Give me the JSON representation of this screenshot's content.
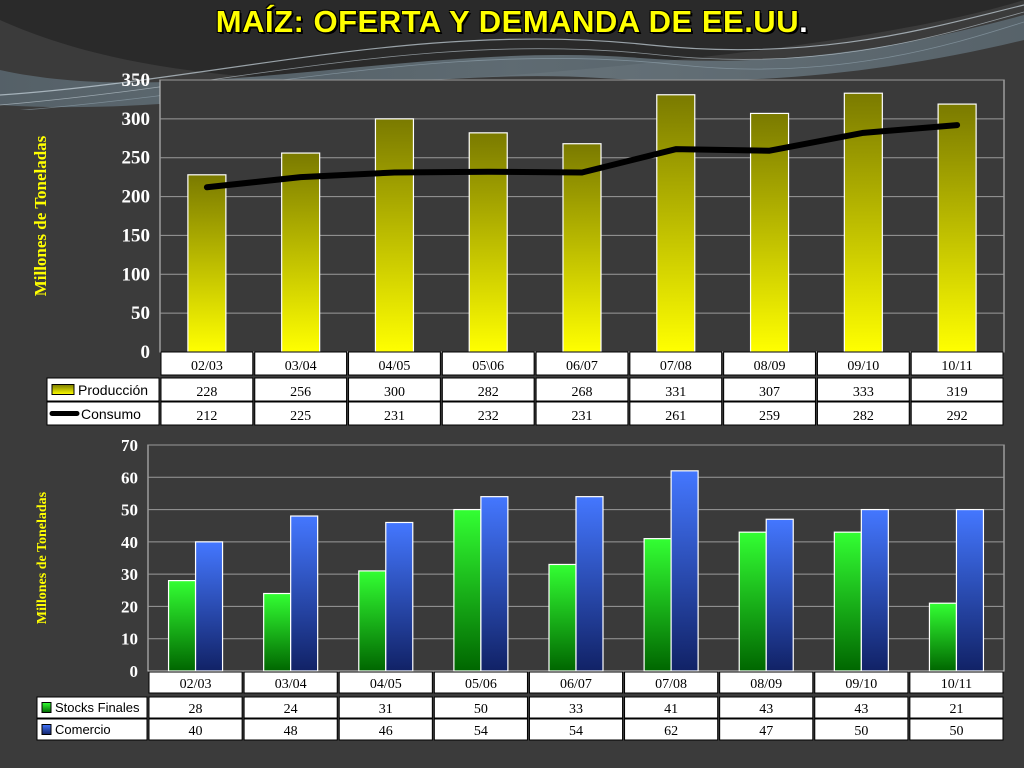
{
  "title": "MAÍZ: OFERTA Y DEMANDA DE EE.UU",
  "title_dot": ".",
  "chart_data": [
    {
      "type": "bar",
      "ylabel": "Millones de Toneladas",
      "ylim": [
        0,
        350
      ],
      "yticks": [
        0,
        50,
        100,
        150,
        200,
        250,
        300,
        350
      ],
      "grid": true,
      "categories": [
        "02/03",
        "03/04",
        "04/05",
        "05\\06",
        "06/07",
        "07/08",
        "08/09",
        "09/10",
        "10/11"
      ],
      "series": [
        {
          "name": "Producción",
          "type": "bar",
          "values": [
            228,
            256,
            300,
            282,
            268,
            331,
            307,
            333,
            319
          ],
          "color_top": "#7a7a00",
          "color_bottom": "#ffff00"
        },
        {
          "name": "Consumo",
          "type": "line",
          "values": [
            212,
            225,
            231,
            232,
            231,
            261,
            259,
            282,
            292
          ],
          "color": "#000000"
        }
      ],
      "legend": "data table"
    },
    {
      "type": "bar",
      "ylabel": "Millones de Toneladas",
      "ylim": [
        0,
        70
      ],
      "yticks": [
        0,
        10,
        20,
        30,
        40,
        50,
        60,
        70
      ],
      "grid": true,
      "categories": [
        "02/03",
        "03/04",
        "04/05",
        "05/06",
        "06/07",
        "07/08",
        "08/09",
        "09/10",
        "10/11"
      ],
      "series": [
        {
          "name": "Stocks Finales",
          "values": [
            28,
            24,
            31,
            50,
            33,
            41,
            43,
            43,
            21
          ],
          "color_top": "#33ff33",
          "color_bottom": "#006600"
        },
        {
          "name": "Comercio",
          "values": [
            40,
            48,
            46,
            54,
            54,
            62,
            47,
            50,
            50
          ],
          "color_top": "#4477ff",
          "color_bottom": "#112266"
        }
      ],
      "legend": "data table"
    }
  ]
}
